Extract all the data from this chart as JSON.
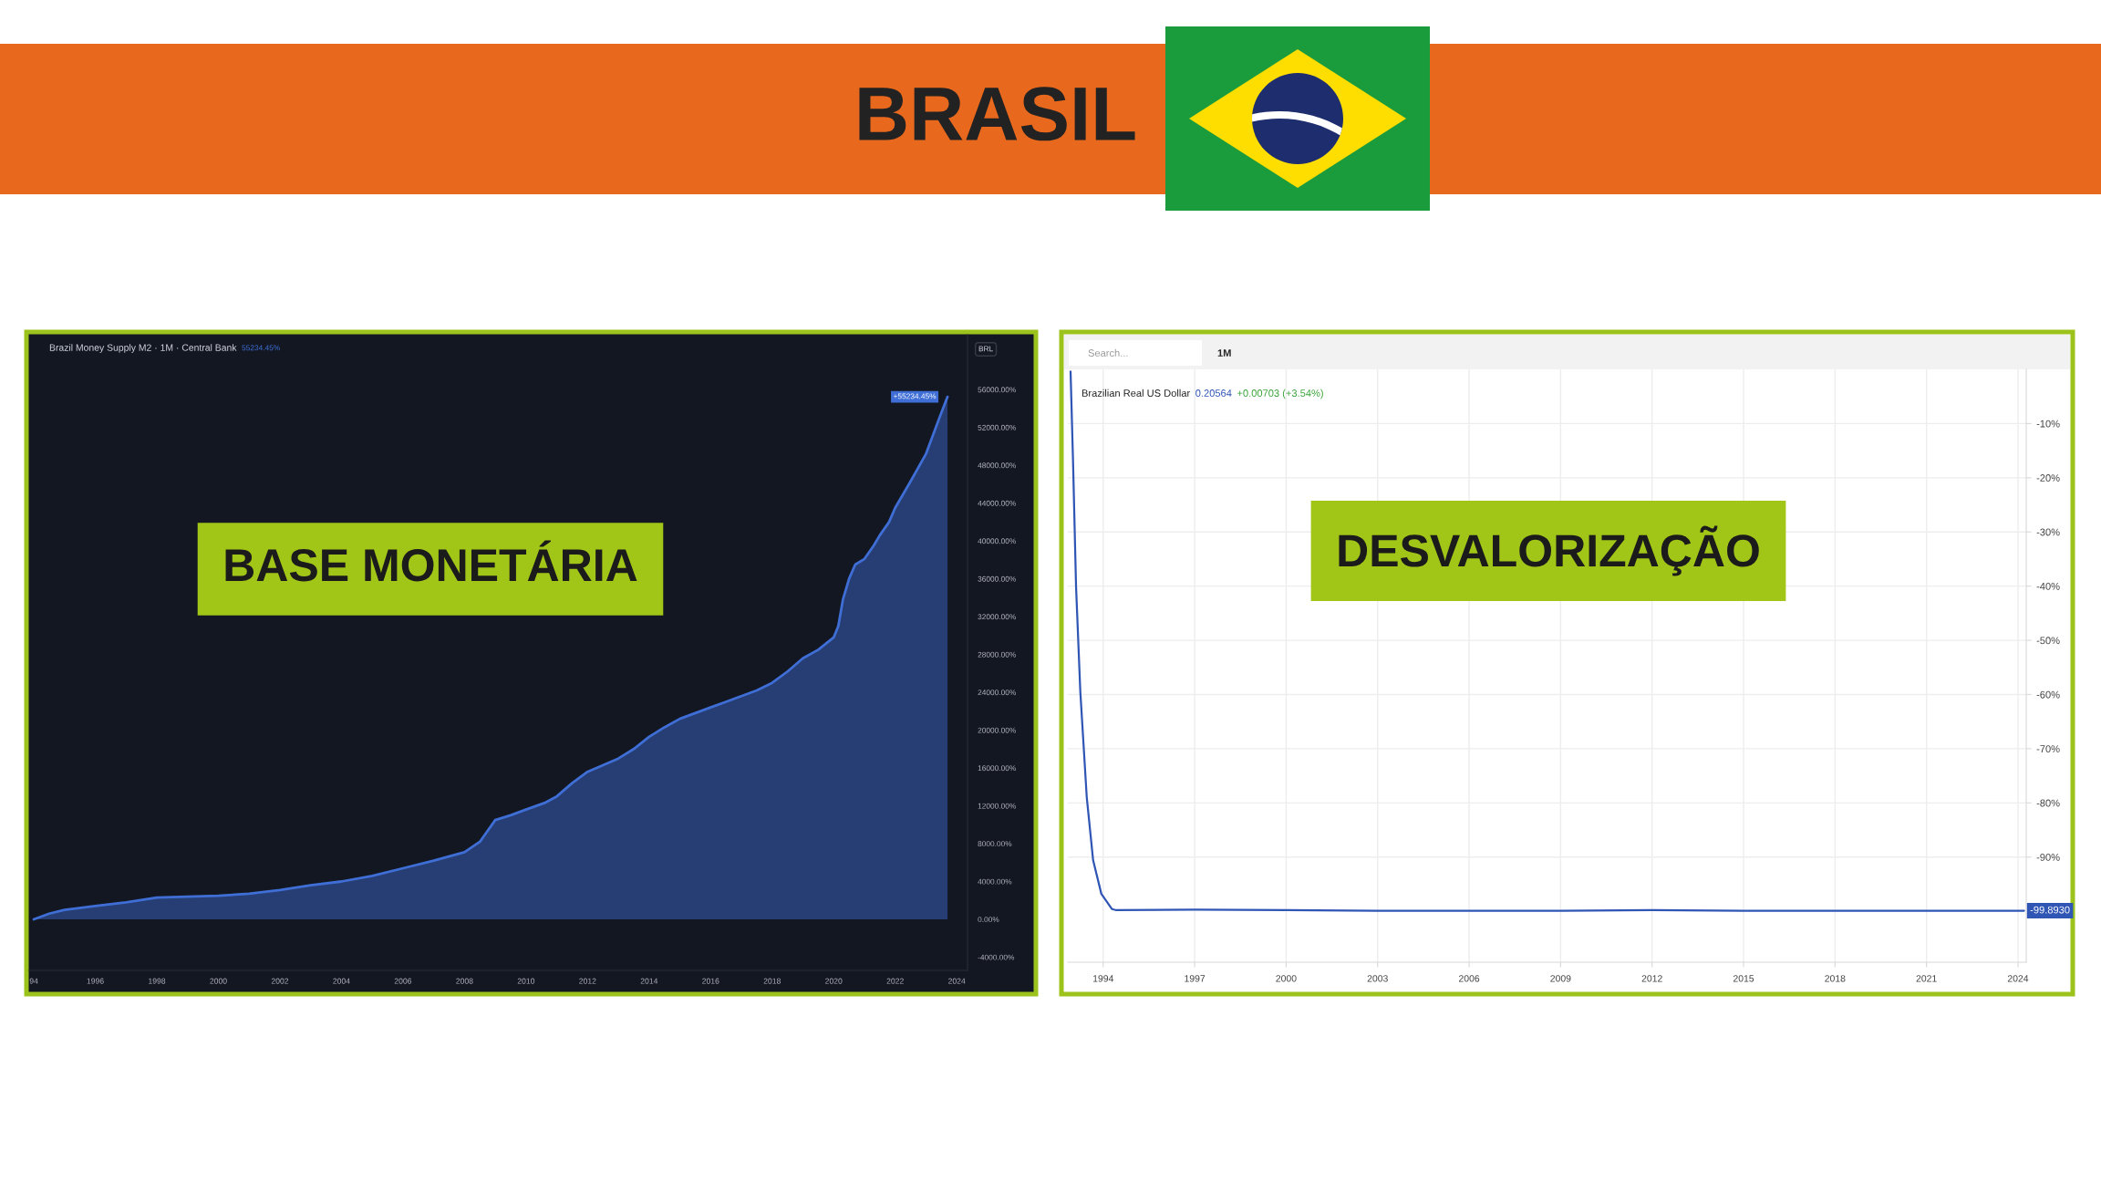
{
  "chart_data": [
    {
      "type": "other",
      "title": "BRASIL"
    },
    {
      "type": "area",
      "title": "Brazil Money Supply M2 · 1M · Central Bank",
      "subtitle": "BASE MONETÁRIA",
      "annotations": [
        "55234.45%",
        "BRL"
      ],
      "x": [
        1994.0,
        1994.5,
        1995.0,
        1996.0,
        1997.0,
        1998.0,
        1999.0,
        2000.0,
        2001.0,
        2002.0,
        2003.0,
        2004.0,
        2005.0,
        2006.0,
        2007.0,
        2008.0,
        2008.5,
        2009.0,
        2009.5,
        2010.0,
        2010.6,
        2011.0,
        2011.5,
        2012.0,
        2012.5,
        2013.0,
        2013.5,
        2014.0,
        2014.5,
        2015.0,
        2015.5,
        2016.0,
        2016.5,
        2017.0,
        2017.5,
        2018.0,
        2018.5,
        2019.0,
        2019.5,
        2020.0,
        2020.15,
        2020.3,
        2020.5,
        2020.7,
        2021.0,
        2021.3,
        2021.5,
        2021.8,
        2022.0,
        2022.5,
        2023.0,
        2023.4,
        2023.7
      ],
      "series": [
        {
          "color": "#3f6fd6",
          "values": [
            0,
            600,
            1000,
            1400,
            1800,
            2300,
            2400,
            2500,
            2700,
            3100,
            3600,
            4000,
            4600,
            5400,
            6200,
            7100,
            8200,
            10500,
            11000,
            11600,
            12300,
            13000,
            14400,
            15600,
            16300,
            17000,
            18000,
            19300,
            20300,
            21200,
            21800,
            22400,
            23000,
            23600,
            24200,
            25000,
            26200,
            27600,
            28500,
            29800,
            31000,
            33800,
            36000,
            37500,
            38100,
            39500,
            40600,
            42000,
            43500,
            46300,
            49200,
            52700,
            55234.45
          ],
          "value_labels": [
            null,
            null,
            null,
            null,
            null,
            null,
            null,
            null,
            null,
            null,
            null,
            null,
            null,
            null,
            null,
            null,
            null,
            null,
            null,
            null,
            null,
            null,
            null,
            null,
            null,
            null,
            null,
            null,
            null,
            null,
            null,
            null,
            null,
            null,
            null,
            null,
            null,
            null,
            null,
            null,
            null,
            null,
            null,
            null,
            null,
            null,
            null,
            null,
            null,
            null,
            null,
            null,
            "+55234.45%"
          ]
        }
      ],
      "xlim": [
        1993.85,
        2024.35
      ],
      "xticks": [
        {
          "value": 1994,
          "label": "94"
        },
        1996,
        1998,
        2000,
        2002,
        2004,
        2006,
        2008,
        2010,
        2012,
        2014,
        2016,
        2018,
        2020,
        2022,
        2024
      ],
      "ylim": [
        -5400,
        61800
      ],
      "yticks": [
        {
          "value": -4000,
          "label": "-4000.00%"
        },
        {
          "value": 0,
          "label": "0.00%"
        },
        {
          "value": 4000,
          "label": "4000.00%"
        },
        {
          "value": 8000,
          "label": "8000.00%"
        },
        {
          "value": 12000,
          "label": "12000.00%"
        },
        {
          "value": 16000,
          "label": "16000.00%"
        },
        {
          "value": 20000,
          "label": "20000.00%"
        },
        {
          "value": 24000,
          "label": "24000.00%"
        },
        {
          "value": 28000,
          "label": "28000.00%"
        },
        {
          "value": 32000,
          "label": "32000.00%"
        },
        {
          "value": 36000,
          "label": "36000.00%"
        },
        {
          "value": 40000,
          "label": "40000.00%"
        },
        {
          "value": 44000,
          "label": "44000.00%"
        },
        {
          "value": 48000,
          "label": "48000.00%"
        },
        {
          "value": 52000,
          "label": "52000.00%"
        },
        {
          "value": 56000,
          "label": "56000.00%"
        }
      ]
    },
    {
      "type": "line",
      "title": "Brazilian Real US Dollar",
      "subtitle": "DESVALORIZAÇÃO",
      "annotations": [
        "0.20564",
        "+0.00703 (+3.54%)",
        "Search...",
        "1M"
      ],
      "x": [
        1992.93,
        1993.01,
        1993.11,
        1993.25,
        1993.46,
        1993.67,
        1993.94,
        1994.29,
        1994.43,
        1997.0,
        2000.0,
        2003.0,
        2006.0,
        2009.0,
        2012.0,
        2015.0,
        2018.0,
        2021.0,
        2024.2
      ],
      "series": [
        {
          "color": "#2f55b5",
          "values": [
            -0.4,
            -16.8,
            -40.1,
            -59.5,
            -78.9,
            -90.6,
            -96.8,
            -99.6,
            -99.8,
            -99.7,
            -99.8,
            -99.9,
            -99.9,
            -99.9,
            -99.8,
            -99.9,
            -99.9,
            -99.9,
            -99.893
          ],
          "value_labels": [
            null,
            null,
            null,
            null,
            null,
            null,
            null,
            null,
            null,
            null,
            null,
            null,
            null,
            null,
            null,
            null,
            null,
            null,
            "-99.8930"
          ]
        }
      ],
      "xlim": [
        1992.84,
        2024.27
      ],
      "xticks": [
        1994,
        1997,
        2000,
        2003,
        2006,
        2009,
        2012,
        2015,
        2018,
        2021,
        2024
      ],
      "ylim": [
        -109.4,
        0
      ],
      "yticks": [
        {
          "value": -10,
          "label": "-10%"
        },
        {
          "value": -20,
          "label": "-20%"
        },
        {
          "value": -30,
          "label": "-30%"
        },
        {
          "value": -40,
          "label": "-40%"
        },
        {
          "value": -50,
          "label": "-50%"
        },
        {
          "value": -60,
          "label": "-60%"
        },
        {
          "value": -70,
          "label": "-70%"
        },
        {
          "value": -80,
          "label": "-80%"
        },
        {
          "value": -90,
          "label": "-90%"
        }
      ],
      "grid": true
    }
  ]
}
